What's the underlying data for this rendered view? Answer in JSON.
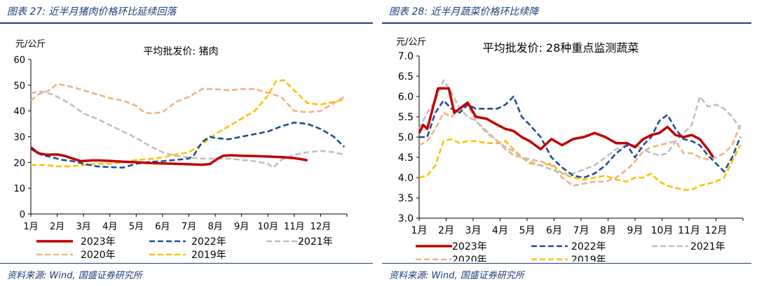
{
  "colors": {
    "accent": "#1a3d7c",
    "y2023": "#c00000",
    "y2022": "#1f4e96",
    "y2021": "#bfbfbf",
    "y2020": "#f4b183",
    "y2019": "#ffc000"
  },
  "left": {
    "figure_title": "图表 27:  近半月猪肉价格环比延续回落",
    "source": "资料来源:  Wind,  国盛证券研究所"
  },
  "right": {
    "figure_title": "图表 28:  近半月蔬菜价格环比续降",
    "source": "资料来源:  Wind,  国盛证券研究所"
  },
  "chart_data": [
    {
      "type": "line",
      "title": "平均批发价:  猪肉",
      "ylabel": "元/公斤",
      "xlabel": "",
      "ylim": [
        0,
        60
      ],
      "yticks": [
        "0",
        "10",
        "20",
        "30",
        "40",
        "50",
        "60"
      ],
      "x_range": [
        0,
        12
      ],
      "categories": [
        "1月",
        "2月",
        "3月",
        "4月",
        "5月",
        "6月",
        "7月",
        "8月",
        "9月",
        "10月",
        "11月",
        "12月"
      ],
      "series": [
        {
          "name": "2023年",
          "color": "#c00000",
          "dash": "solid",
          "x": [
            0,
            0.3,
            0.6,
            1,
            1.3,
            1.6,
            1.9,
            2.3,
            2.6,
            3,
            3.5,
            4,
            4.5,
            5,
            5.5,
            6,
            6.5,
            6.8,
            7.1,
            7.3,
            7.6,
            8,
            8.5,
            9,
            9.5,
            10,
            10.3,
            10.5
          ],
          "y": [
            25.5,
            23.5,
            23,
            23.1,
            22.5,
            21.5,
            20.5,
            20.8,
            20.8,
            20.6,
            20.3,
            20.1,
            19.8,
            19.6,
            19.5,
            19.3,
            19.1,
            19.4,
            21.5,
            22.6,
            22.8,
            22.6,
            22.5,
            22.3,
            22.1,
            21.7,
            21.2,
            20.8
          ]
        },
        {
          "name": "2022年",
          "color": "#1f4e96",
          "dash": "8,4",
          "x": [
            0,
            0.4,
            0.8,
            1.2,
            1.6,
            2,
            2.5,
            3,
            3.5,
            4,
            4.5,
            5,
            5.5,
            6,
            6.2,
            6.5,
            6.8,
            7,
            7.5,
            8,
            8.5,
            9,
            9.5,
            10,
            10.5,
            11,
            11.5,
            11.9
          ],
          "y": [
            26,
            23,
            22,
            21,
            20.5,
            19.5,
            18.5,
            18.2,
            18,
            19.5,
            20.2,
            20.5,
            21,
            21.5,
            23,
            28,
            30,
            29.5,
            29,
            30,
            31,
            32,
            34,
            35.5,
            35,
            33,
            30,
            26
          ]
        },
        {
          "name": "2021年",
          "color": "#bfbfbf",
          "dash": "8,4",
          "x": [
            0,
            0.4,
            0.8,
            1.2,
            1.6,
            2,
            2.5,
            3,
            3.5,
            4,
            4.5,
            5,
            5.5,
            6,
            6.5,
            7,
            7.5,
            8,
            8.5,
            9,
            9.2,
            9.5,
            10,
            10.5,
            11,
            11.5,
            11.9
          ],
          "y": [
            47,
            47.5,
            46.5,
            44.5,
            42,
            39,
            37,
            34.5,
            32,
            29.5,
            26.5,
            24,
            22.5,
            22,
            21.5,
            21.5,
            21.5,
            21,
            20.5,
            19.5,
            18,
            21,
            23,
            24,
            24.5,
            24,
            23
          ]
        },
        {
          "name": "2020年",
          "color": "#f4b183",
          "dash": "8,4",
          "x": [
            0,
            0.3,
            0.7,
            1,
            1.5,
            2,
            2.5,
            3,
            3.5,
            4,
            4.3,
            4.6,
            5,
            5.5,
            6,
            6.5,
            7,
            7.5,
            8,
            8.5,
            9,
            9.5,
            10,
            10.5,
            11,
            11.5,
            11.9
          ],
          "y": [
            44,
            46.5,
            48,
            50.5,
            49.5,
            48,
            46.5,
            45,
            44,
            42,
            39.5,
            39,
            39.5,
            43.5,
            45.5,
            48.5,
            48.5,
            48,
            48.5,
            48.5,
            47,
            45.5,
            40,
            39.5,
            40,
            43,
            45.5
          ]
        },
        {
          "name": "2019年",
          "color": "#ffc000",
          "dash": "8,4",
          "x": [
            0,
            0.5,
            1,
            1.5,
            2,
            2.5,
            3,
            3.5,
            4,
            4.5,
            5,
            5.5,
            6,
            6.5,
            7,
            7.5,
            8,
            8.5,
            9,
            9.3,
            9.6,
            10,
            10.5,
            11,
            11.5,
            11.9
          ],
          "y": [
            19,
            19,
            18.5,
            18.5,
            19,
            19.5,
            19.5,
            20,
            21,
            21.3,
            22,
            23,
            24,
            27,
            31,
            34,
            37,
            40,
            46,
            51.5,
            52,
            48,
            43,
            42.5,
            43.5,
            44.5
          ]
        }
      ]
    },
    {
      "type": "line",
      "title": "平均批发价:  28种重点监测蔬菜",
      "ylabel": "元/公斤",
      "xlabel": "",
      "ylim": [
        3.0,
        7.0
      ],
      "yticks": [
        "3.0",
        "3.5",
        "4.0",
        "4.5",
        "5.0",
        "5.5",
        "6.0",
        "6.5",
        "7.0"
      ],
      "x_range": [
        0,
        12
      ],
      "categories": [
        "1月",
        "2月",
        "3月",
        "4月",
        "5月",
        "6月",
        "7月",
        "8月",
        "9月",
        "10月",
        "11月",
        "12月"
      ],
      "series": [
        {
          "name": "2023年",
          "color": "#c00000",
          "dash": "solid",
          "x": [
            0,
            0.15,
            0.3,
            0.5,
            0.7,
            0.9,
            1.1,
            1.3,
            1.5,
            1.8,
            2.1,
            2.5,
            2.9,
            3.2,
            3.5,
            3.8,
            4.1,
            4.5,
            4.9,
            5.3,
            5.7,
            6.1,
            6.5,
            6.9,
            7.3,
            7.7,
            8,
            8.3,
            8.6,
            8.9,
            9.2,
            9.5,
            9.8,
            10.1,
            10.4,
            10.7,
            10.9
          ],
          "y": [
            5.1,
            5.3,
            5.2,
            5.7,
            6.2,
            6.2,
            6.2,
            5.6,
            5.7,
            5.85,
            5.5,
            5.45,
            5.3,
            5.2,
            5.15,
            5.0,
            4.9,
            4.7,
            4.95,
            4.8,
            4.95,
            5.0,
            5.1,
            5.0,
            4.85,
            4.85,
            4.75,
            4.95,
            5.05,
            5.1,
            5.25,
            5.05,
            5.0,
            5.05,
            4.95,
            4.7,
            4.5
          ]
        },
        {
          "name": "2022年",
          "color": "#1f4e96",
          "dash": "8,4",
          "x": [
            0,
            0.3,
            0.6,
            0.9,
            1.2,
            1.5,
            1.8,
            2.1,
            2.5,
            2.9,
            3.2,
            3.5,
            3.8,
            4.1,
            4.5,
            4.9,
            5.3,
            5.7,
            6.1,
            6.5,
            6.9,
            7.3,
            7.7,
            8,
            8.3,
            8.6,
            8.9,
            9.2,
            9.5,
            9.8,
            10.1,
            10.4,
            10.7,
            11,
            11.3,
            11.6,
            11.9
          ],
          "y": [
            5.0,
            5.0,
            5.6,
            5.9,
            5.7,
            5.6,
            5.8,
            5.7,
            5.7,
            5.7,
            5.8,
            6.0,
            5.5,
            5.3,
            5.0,
            4.5,
            4.25,
            4.05,
            4.0,
            4.1,
            4.3,
            4.6,
            4.8,
            4.5,
            4.8,
            5.0,
            5.4,
            5.55,
            5.2,
            4.95,
            4.9,
            4.8,
            4.55,
            4.35,
            4.15,
            4.5,
            5.0
          ]
        },
        {
          "name": "2021年",
          "color": "#bfbfbf",
          "dash": "8,4",
          "x": [
            0,
            0.3,
            0.6,
            0.9,
            1.2,
            1.5,
            1.8,
            2.1,
            2.5,
            2.9,
            3.2,
            3.5,
            3.8,
            4.1,
            4.5,
            4.9,
            5.3,
            5.7,
            6.1,
            6.5,
            6.9,
            7.3,
            7.7,
            8,
            8.3,
            8.6,
            8.9,
            9.2,
            9.5,
            9.8,
            10.1,
            10.4,
            10.7,
            11,
            11.3,
            11.6,
            11.9
          ],
          "y": [
            5.2,
            5.6,
            5.9,
            6.4,
            6.1,
            5.7,
            5.5,
            5.4,
            5.1,
            4.9,
            4.75,
            4.65,
            4.5,
            4.4,
            4.3,
            4.2,
            4.1,
            4.1,
            4.2,
            4.3,
            4.5,
            4.7,
            4.8,
            4.8,
            4.7,
            4.6,
            4.55,
            4.6,
            4.9,
            5.1,
            5.3,
            6.0,
            5.75,
            5.8,
            5.7,
            5.5,
            5.2
          ]
        },
        {
          "name": "2020年",
          "color": "#f4b183",
          "dash": "8,4",
          "x": [
            0,
            0.3,
            0.6,
            0.9,
            1.2,
            1.5,
            1.8,
            2.1,
            2.5,
            2.9,
            3.2,
            3.5,
            3.8,
            4.1,
            4.5,
            4.9,
            5.3,
            5.7,
            6.1,
            6.5,
            6.9,
            7.3,
            7.7,
            8,
            8.3,
            8.6,
            8.9,
            9.2,
            9.5,
            9.8,
            10.1,
            10.4,
            10.7,
            11,
            11.3,
            11.6,
            11.9
          ],
          "y": [
            4.8,
            4.9,
            5.2,
            5.6,
            5.5,
            5.7,
            5.8,
            5.4,
            5.15,
            4.9,
            4.7,
            4.55,
            4.5,
            4.45,
            4.4,
            4.3,
            4.0,
            3.8,
            3.85,
            3.9,
            3.9,
            4.0,
            4.2,
            4.4,
            4.65,
            4.75,
            4.8,
            4.85,
            4.9,
            4.6,
            4.6,
            4.5,
            4.45,
            4.5,
            4.6,
            4.8,
            5.3
          ]
        },
        {
          "name": "2019年",
          "color": "#ffc000",
          "dash": "8,4",
          "x": [
            0,
            0.3,
            0.6,
            0.9,
            1.2,
            1.5,
            1.8,
            2.1,
            2.5,
            2.9,
            3.2,
            3.5,
            3.8,
            4.1,
            4.5,
            4.9,
            5.3,
            5.7,
            6.1,
            6.5,
            6.9,
            7.3,
            7.7,
            8,
            8.3,
            8.6,
            8.9,
            9.2,
            9.5,
            9.8,
            10.1,
            10.4,
            10.7,
            11,
            11.3,
            11.6,
            11.9
          ],
          "y": [
            4.0,
            4.05,
            4.3,
            4.9,
            4.95,
            4.85,
            4.9,
            4.9,
            4.85,
            4.85,
            4.9,
            4.7,
            4.5,
            4.35,
            4.3,
            4.35,
            4.1,
            4.0,
            3.95,
            4.0,
            4.05,
            3.95,
            3.9,
            4.0,
            4.0,
            4.1,
            3.9,
            3.8,
            3.75,
            3.7,
            3.7,
            3.8,
            3.85,
            3.9,
            4.0,
            4.4,
            4.8
          ]
        }
      ]
    }
  ]
}
